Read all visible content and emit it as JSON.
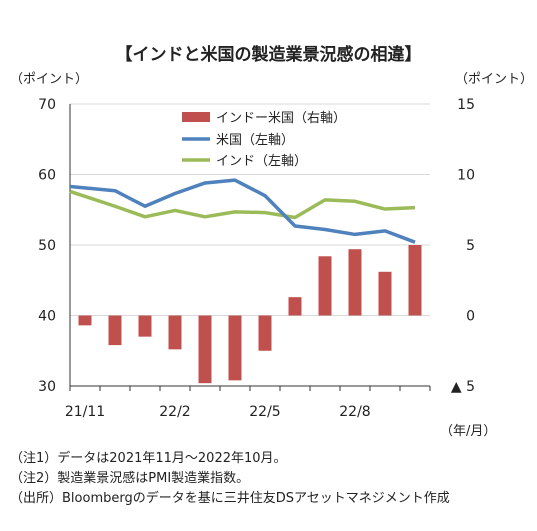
{
  "title": "【インドと米国の製造業景況感の相違】",
  "left_axis_unit": "（ポイント）",
  "right_axis_unit": "（ポイント）",
  "period_unit": "（年/月）",
  "notes": [
    "（注1）データは2021年11月～2022年10月。",
    "（注2）製造業景況感はPMI製造業指数。",
    "（出所）Bloombergのデータを基に三井住友DSアセットマネジメント作成"
  ],
  "colors": {
    "bar": "#c0504d",
    "us_line": "#4f81bd",
    "india_line": "#9bbb59",
    "grid": "#d9d9d9"
  },
  "chart_data": {
    "type": "bar+line",
    "x_tick_labels": [
      "21/11",
      "22/2",
      "22/5",
      "22/8"
    ],
    "x_tick_index": [
      0,
      3,
      6,
      9
    ],
    "left_axis": {
      "ylim": [
        30,
        70
      ],
      "ticks": [
        30,
        40,
        50,
        60,
        70
      ]
    },
    "right_axis": {
      "ylim": [
        -5,
        15
      ],
      "ticks": [
        "▲ 5",
        "0",
        "5",
        "10",
        "15"
      ],
      "tick_values": [
        -5,
        0,
        5,
        10,
        15
      ]
    },
    "legend": [
      "インドー米国（右軸）",
      "米国（左軸）",
      "インド（左軸）"
    ],
    "grid": true,
    "series": [
      {
        "name": "インドー米国（右軸）",
        "type": "bar",
        "axis": "right",
        "values": [
          -0.7,
          -2.1,
          -1.5,
          -2.4,
          -4.8,
          -4.6,
          -2.5,
          1.3,
          4.2,
          4.7,
          3.1,
          5.0
        ]
      },
      {
        "name": "米国（左軸）",
        "type": "line",
        "axis": "left",
        "values": [
          58.3,
          57.7,
          55.5,
          57.3,
          58.8,
          59.2,
          57.0,
          52.7,
          52.2,
          51.5,
          52.0,
          50.4
        ]
      },
      {
        "name": "インド（左軸）",
        "type": "line",
        "axis": "left",
        "values": [
          57.6,
          55.5,
          54.0,
          54.9,
          54.0,
          54.7,
          54.6,
          53.9,
          56.4,
          56.2,
          55.1,
          55.3
        ]
      }
    ]
  }
}
